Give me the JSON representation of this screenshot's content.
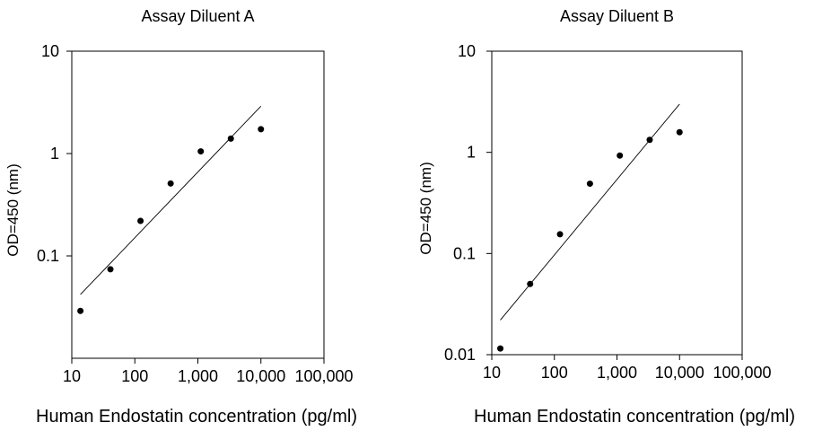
{
  "chart_data": [
    {
      "type": "scatter",
      "title": "Assay Diluent A",
      "xlabel": "Human Endostatin concentration (pg/ml)",
      "ylabel": "OD=450 (nm)",
      "x_scale": "log",
      "y_scale": "log",
      "xlim": [
        10,
        100000
      ],
      "ylim": [
        0.01,
        10
      ],
      "x_ticks": [
        10,
        100,
        1000,
        10000,
        100000
      ],
      "x_tick_labels": [
        "10",
        "100",
        "1,000",
        "10,000",
        "100,000"
      ],
      "y_ticks": [
        0.1,
        1,
        10
      ],
      "y_tick_labels": [
        "0.1",
        "1",
        "10"
      ],
      "grid": false,
      "points": [
        {
          "x": 13.7,
          "y": 0.029
        },
        {
          "x": 41,
          "y": 0.074
        },
        {
          "x": 123,
          "y": 0.22
        },
        {
          "x": 370,
          "y": 0.51
        },
        {
          "x": 1111,
          "y": 1.05
        },
        {
          "x": 3333,
          "y": 1.4
        },
        {
          "x": 10000,
          "y": 1.73
        }
      ],
      "fit_line": [
        {
          "x": 13.7,
          "y": 0.042
        },
        {
          "x": 10000,
          "y": 2.9
        }
      ]
    },
    {
      "type": "scatter",
      "title": "Assay Diluent B",
      "xlabel": "Human Endostatin concentration (pg/ml)",
      "ylabel": "OD=450 (nm)",
      "x_scale": "log",
      "y_scale": "log",
      "xlim": [
        10,
        100000
      ],
      "ylim": [
        0.01,
        10
      ],
      "x_ticks": [
        10,
        100,
        1000,
        10000,
        100000
      ],
      "x_tick_labels": [
        "10",
        "100",
        "1,000",
        "10,000",
        "100,000"
      ],
      "y_ticks": [
        0.01,
        0.1,
        1,
        10
      ],
      "y_tick_labels": [
        "0.01",
        "0.1",
        "1",
        "10"
      ],
      "grid": false,
      "points": [
        {
          "x": 13.7,
          "y": 0.0115
        },
        {
          "x": 41,
          "y": 0.05
        },
        {
          "x": 123,
          "y": 0.155
        },
        {
          "x": 370,
          "y": 0.49
        },
        {
          "x": 1111,
          "y": 0.93
        },
        {
          "x": 3333,
          "y": 1.33
        },
        {
          "x": 10000,
          "y": 1.58
        }
      ],
      "fit_line": [
        {
          "x": 13.7,
          "y": 0.022
        },
        {
          "x": 10000,
          "y": 3.0
        }
      ]
    }
  ]
}
